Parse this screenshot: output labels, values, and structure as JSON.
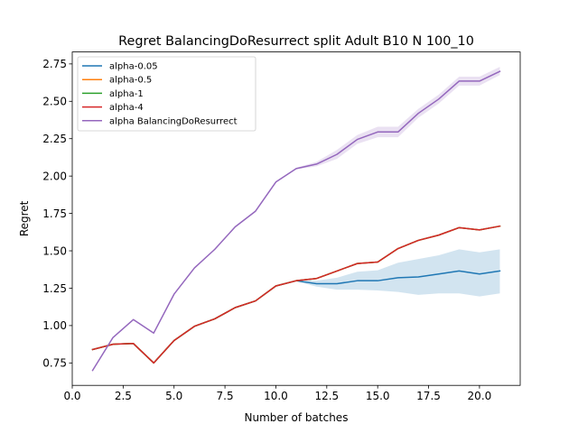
{
  "chart_data": {
    "type": "line",
    "title": "Regret BalancingDoResurrect split Adult B10 N 100_10",
    "xlabel": "Number of batches",
    "ylabel": "Regret",
    "xlim": [
      0.0,
      22.0
    ],
    "ylim": [
      0.6,
      2.83
    ],
    "xticks": [
      0.0,
      2.5,
      5.0,
      7.5,
      10.0,
      12.5,
      15.0,
      17.5,
      20.0
    ],
    "xtick_labels": [
      "0.0",
      "2.5",
      "5.0",
      "7.5",
      "10.0",
      "12.5",
      "15.0",
      "17.5",
      "20.0"
    ],
    "yticks": [
      0.75,
      1.0,
      1.25,
      1.5,
      1.75,
      2.0,
      2.25,
      2.5,
      2.75
    ],
    "ytick_labels": [
      "0.75",
      "1.00",
      "1.25",
      "1.50",
      "1.75",
      "2.00",
      "2.25",
      "2.50",
      "2.75"
    ],
    "grid": false,
    "legend_position": "top-left",
    "x": [
      1,
      2,
      3,
      4,
      5,
      6,
      7,
      8,
      9,
      10,
      11,
      12,
      13,
      14,
      15,
      16,
      17,
      18,
      19,
      20,
      21
    ],
    "series": [
      {
        "name": "alpha-0.05",
        "color": "#1f77b4",
        "values": [
          0.84,
          0.875,
          0.88,
          0.75,
          0.9,
          0.995,
          1.045,
          1.12,
          1.165,
          1.265,
          1.3,
          1.28,
          1.28,
          1.3,
          1.3,
          1.32,
          1.325,
          1.345,
          1.365,
          1.345,
          1.365
        ],
        "band_lower": [
          0.84,
          0.875,
          0.88,
          0.75,
          0.9,
          0.995,
          1.045,
          1.12,
          1.165,
          1.265,
          1.295,
          1.26,
          1.24,
          1.24,
          1.235,
          1.225,
          1.205,
          1.215,
          1.215,
          1.195,
          1.215
        ],
        "band_upper": [
          0.84,
          0.875,
          0.88,
          0.75,
          0.9,
          0.995,
          1.045,
          1.12,
          1.165,
          1.265,
          1.305,
          1.3,
          1.32,
          1.36,
          1.37,
          1.42,
          1.445,
          1.47,
          1.51,
          1.49,
          1.51
        ]
      },
      {
        "name": "alpha-0.5",
        "color": "#ff7f0e",
        "values": [
          0.84,
          0.875,
          0.88,
          0.75,
          0.9,
          0.995,
          1.045,
          1.12,
          1.165,
          1.265,
          1.3,
          1.315,
          1.365,
          1.415,
          1.425,
          1.515,
          1.57,
          1.605,
          1.655,
          1.64,
          1.665
        ]
      },
      {
        "name": "alpha-1",
        "color": "#2ca02c",
        "values": [
          0.84,
          0.875,
          0.88,
          0.75,
          0.9,
          0.995,
          1.045,
          1.12,
          1.165,
          1.265,
          1.3,
          1.315,
          1.365,
          1.415,
          1.425,
          1.515,
          1.57,
          1.605,
          1.655,
          1.64,
          1.665
        ]
      },
      {
        "name": "alpha-4",
        "color": "#d62728",
        "values": [
          0.84,
          0.875,
          0.88,
          0.75,
          0.9,
          0.995,
          1.045,
          1.12,
          1.165,
          1.265,
          1.3,
          1.315,
          1.365,
          1.415,
          1.425,
          1.515,
          1.57,
          1.605,
          1.655,
          1.64,
          1.665
        ]
      },
      {
        "name": "alpha BalancingDoResurrect",
        "color": "#9467bd",
        "values": [
          0.7,
          0.92,
          1.04,
          0.95,
          1.21,
          1.385,
          1.51,
          1.66,
          1.765,
          1.96,
          2.05,
          2.08,
          2.145,
          2.245,
          2.295,
          2.295,
          2.42,
          2.515,
          2.635,
          2.635,
          2.7
        ],
        "band_lower": [
          0.7,
          0.92,
          1.04,
          0.95,
          1.21,
          1.385,
          1.51,
          1.66,
          1.765,
          1.96,
          2.045,
          2.065,
          2.115,
          2.215,
          2.26,
          2.26,
          2.39,
          2.485,
          2.605,
          2.605,
          2.675
        ],
        "band_upper": [
          0.7,
          0.92,
          1.04,
          0.95,
          1.21,
          1.385,
          1.51,
          1.66,
          1.765,
          1.96,
          2.055,
          2.095,
          2.175,
          2.275,
          2.33,
          2.33,
          2.45,
          2.545,
          2.665,
          2.665,
          2.73
        ]
      }
    ]
  }
}
